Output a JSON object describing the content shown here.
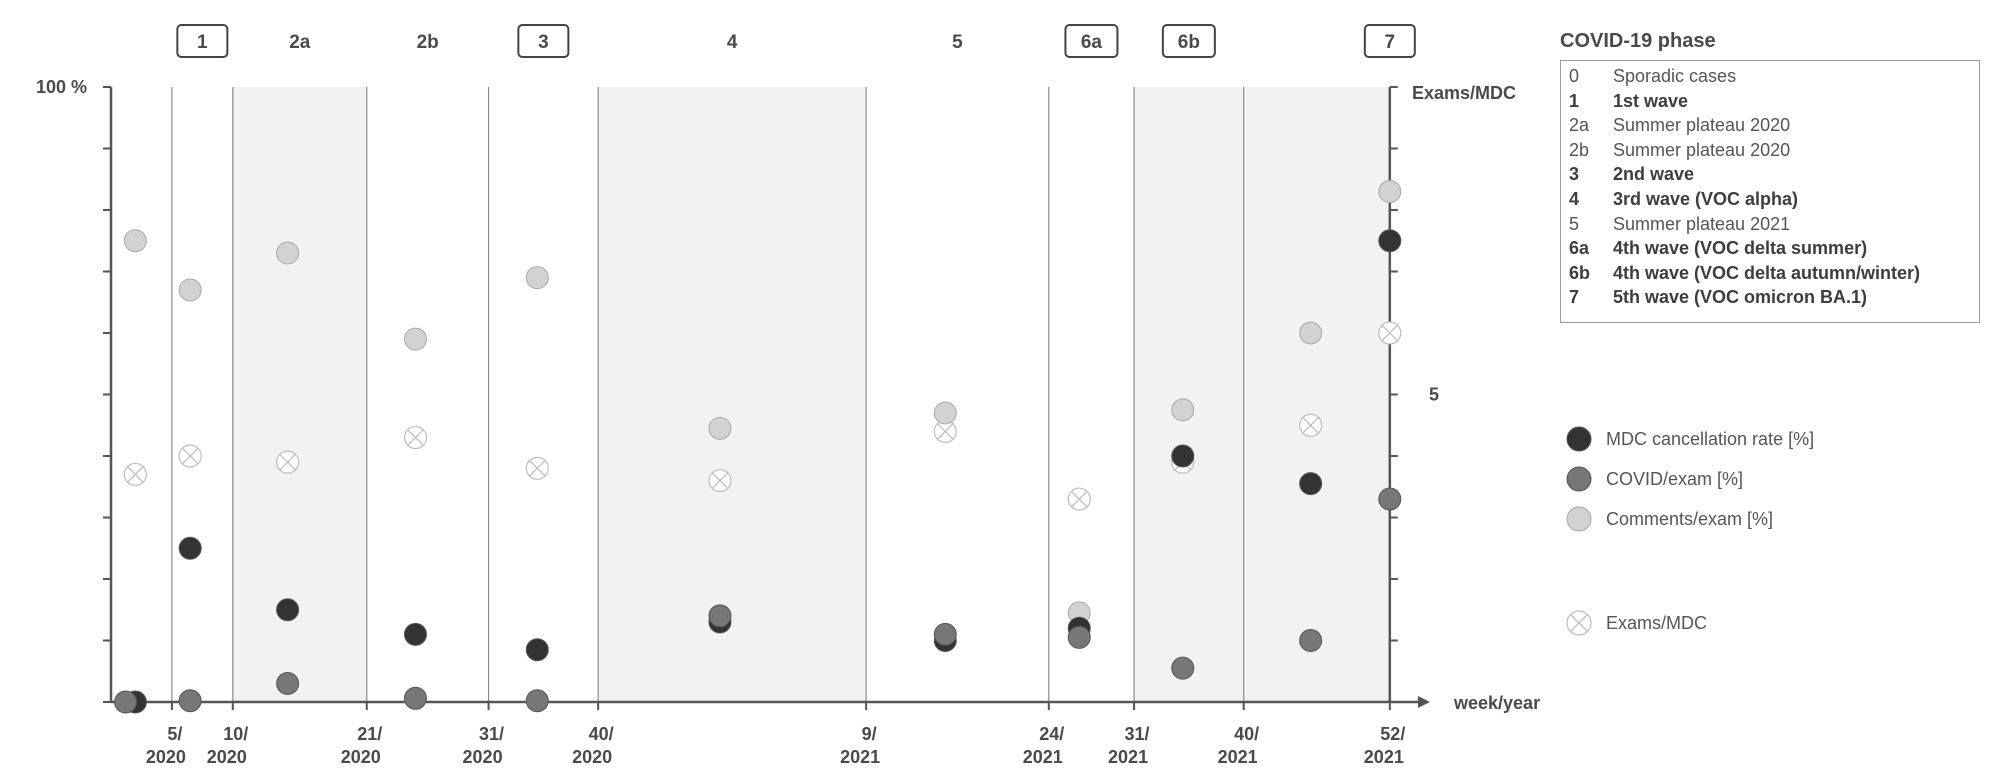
{
  "chart_data": {
    "type": "scatter",
    "phase_labels": [
      {
        "code": "0",
        "boxed": false
      },
      {
        "code": "1",
        "boxed": true
      },
      {
        "code": "2a",
        "boxed": false
      },
      {
        "code": "2b",
        "boxed": false
      },
      {
        "code": "3",
        "boxed": true
      },
      {
        "code": "4",
        "boxed": false
      },
      {
        "code": "5",
        "boxed": false
      },
      {
        "code": "6a",
        "boxed": true
      },
      {
        "code": "6b",
        "boxed": true
      },
      {
        "code": "7",
        "boxed": true
      }
    ],
    "x_axis": {
      "label": "week/year",
      "domain": [
        0,
        106
      ],
      "ticks": [
        {
          "x": 5,
          "week": "5/",
          "year": "2020"
        },
        {
          "x": 10,
          "week": "10/",
          "year": "2020"
        },
        {
          "x": 21,
          "week": "21/",
          "year": "2020"
        },
        {
          "x": 31,
          "week": "31/",
          "year": "2020"
        },
        {
          "x": 40,
          "week": "40/",
          "year": "2020"
        },
        {
          "x": 62,
          "week": "9/",
          "year": "2021"
        },
        {
          "x": 77,
          "week": "24/",
          "year": "2021"
        },
        {
          "x": 84,
          "week": "31/",
          "year": "2021"
        },
        {
          "x": 93,
          "week": "40/",
          "year": "2021"
        },
        {
          "x": 105,
          "week": "52/",
          "year": "2021"
        }
      ],
      "phase_boundaries": [
        5,
        10,
        21,
        31,
        40,
        62,
        77,
        84,
        93
      ],
      "shaded_ranges": [
        [
          10,
          21
        ],
        [
          40,
          62
        ],
        [
          84,
          105
        ]
      ]
    },
    "y_left": {
      "label": "100 %",
      "range": [
        0,
        100
      ],
      "tick_step": 10
    },
    "y_right": {
      "label": "Exams/MDC",
      "range": [
        0,
        10
      ],
      "tick_step": 1,
      "labeled_ticks": [
        5
      ]
    },
    "series": [
      {
        "name": "MDC cancellation rate [%]",
        "key": "mdc",
        "color": "#333333",
        "points": [
          [
            2,
            0
          ],
          [
            6.5,
            25
          ],
          [
            14.5,
            15
          ],
          [
            25,
            11
          ],
          [
            35,
            8.5
          ],
          [
            50,
            13
          ],
          [
            68.5,
            10
          ],
          [
            79.5,
            12
          ],
          [
            88,
            40
          ],
          [
            98.5,
            35.5
          ],
          [
            105,
            75
          ]
        ]
      },
      {
        "name": "COVID/exam [%]",
        "key": "covid",
        "color": "#777777",
        "points": [
          [
            1.2,
            0
          ],
          [
            6.5,
            0.2
          ],
          [
            14.5,
            3
          ],
          [
            25,
            0.6
          ],
          [
            35,
            0.2
          ],
          [
            50,
            14
          ],
          [
            68.5,
            11
          ],
          [
            79.5,
            10.5
          ],
          [
            88,
            5.5
          ],
          [
            98.5,
            10
          ],
          [
            105,
            33
          ]
        ]
      },
      {
        "name": "Comments/exam [%]",
        "key": "comments",
        "color": "#d2d2d2",
        "points": [
          [
            2,
            75
          ],
          [
            6.5,
            67
          ],
          [
            14.5,
            73
          ],
          [
            25,
            59
          ],
          [
            35,
            69
          ],
          [
            50,
            44.5
          ],
          [
            68.5,
            47
          ],
          [
            79.5,
            14.5
          ],
          [
            88,
            47.5
          ],
          [
            98.5,
            60
          ],
          [
            105,
            83
          ]
        ]
      },
      {
        "name": "Exams/MDC",
        "key": "exams",
        "color": "#ffffff",
        "points": [
          [
            2,
            3.7
          ],
          [
            6.5,
            4.0
          ],
          [
            14.5,
            3.9
          ],
          [
            25,
            4.3
          ],
          [
            35,
            3.8
          ],
          [
            50,
            3.6
          ],
          [
            68.5,
            4.4
          ],
          [
            79.5,
            3.3
          ],
          [
            88,
            3.9
          ],
          [
            98.5,
            4.5
          ],
          [
            105,
            6.0
          ]
        ]
      }
    ]
  },
  "phase_legend": {
    "title": "COVID-19 phase",
    "items": [
      {
        "code": "0",
        "label": "Sporadic cases",
        "bold": false
      },
      {
        "code": "1",
        "label": "1st wave",
        "bold": true
      },
      {
        "code": "2a",
        "label": "Summer plateau 2020",
        "bold": false
      },
      {
        "code": "2b",
        "label": "Summer plateau 2020",
        "bold": false
      },
      {
        "code": "3",
        "label": "2nd wave",
        "bold": true
      },
      {
        "code": "4",
        "label": "3rd wave (VOC alpha)",
        "bold": true
      },
      {
        "code": "5",
        "label": "Summer plateau 2021",
        "bold": false
      },
      {
        "code": "6a",
        "label": "4th wave (VOC delta summer)",
        "bold": true
      },
      {
        "code": "6b",
        "label": "4th wave (VOC delta autumn/winter)",
        "bold": true
      },
      {
        "code": "7",
        "label": "5th wave (VOC omicron BA.1)",
        "bold": true
      }
    ]
  },
  "series_legend": [
    {
      "key": "mdc",
      "label": "MDC cancellation rate [%]"
    },
    {
      "key": "covid",
      "label": "COVID/exam [%]"
    },
    {
      "key": "comments",
      "label": "Comments/exam [%]"
    },
    {
      "key": "exams",
      "label": "Exams/MDC"
    }
  ]
}
